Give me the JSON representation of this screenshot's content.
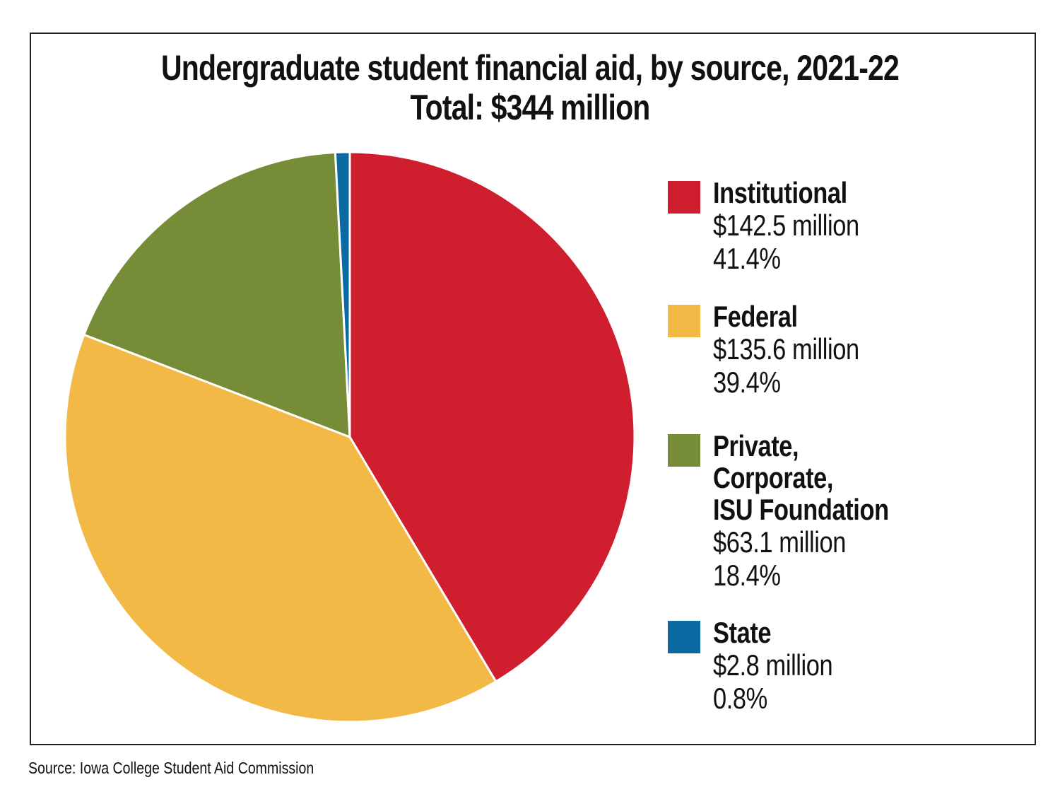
{
  "chart_data": {
    "type": "pie",
    "title": "Undergraduate student financial aid, by source, 2021-22",
    "subtitle": "Total: $344 million",
    "categories": [
      "Institutional",
      "Federal",
      "Private, Corporate, ISU Foundation",
      "State"
    ],
    "values": [
      142.5,
      135.6,
      63.1,
      2.8
    ],
    "percentages": [
      41.4,
      39.4,
      18.4,
      0.8
    ],
    "unit": "million",
    "colors": [
      "#cf1f2e",
      "#f2b947",
      "#778c37",
      "#0b6aa2"
    ],
    "start_angle_deg": 0,
    "direction": "clockwise",
    "legend_position": "right",
    "legend": [
      {
        "label_lines": [
          "Institutional"
        ],
        "value_text": "$142.5 million",
        "pct_text": "41.4%",
        "color": "#cf1f2e"
      },
      {
        "label_lines": [
          "Federal"
        ],
        "value_text": "$135.6 million",
        "pct_text": "39.4%",
        "color": "#f2b947"
      },
      {
        "label_lines": [
          "Private,",
          "Corporate,",
          "ISU Foundation"
        ],
        "value_text": "$63.1 million",
        "pct_text": "18.4%",
        "color": "#778c37"
      },
      {
        "label_lines": [
          "State"
        ],
        "value_text": "$2.8 million",
        "pct_text": "0.8%",
        "color": "#0b6aa2"
      }
    ],
    "source": "Source: Iowa College Student Aid Commission"
  }
}
